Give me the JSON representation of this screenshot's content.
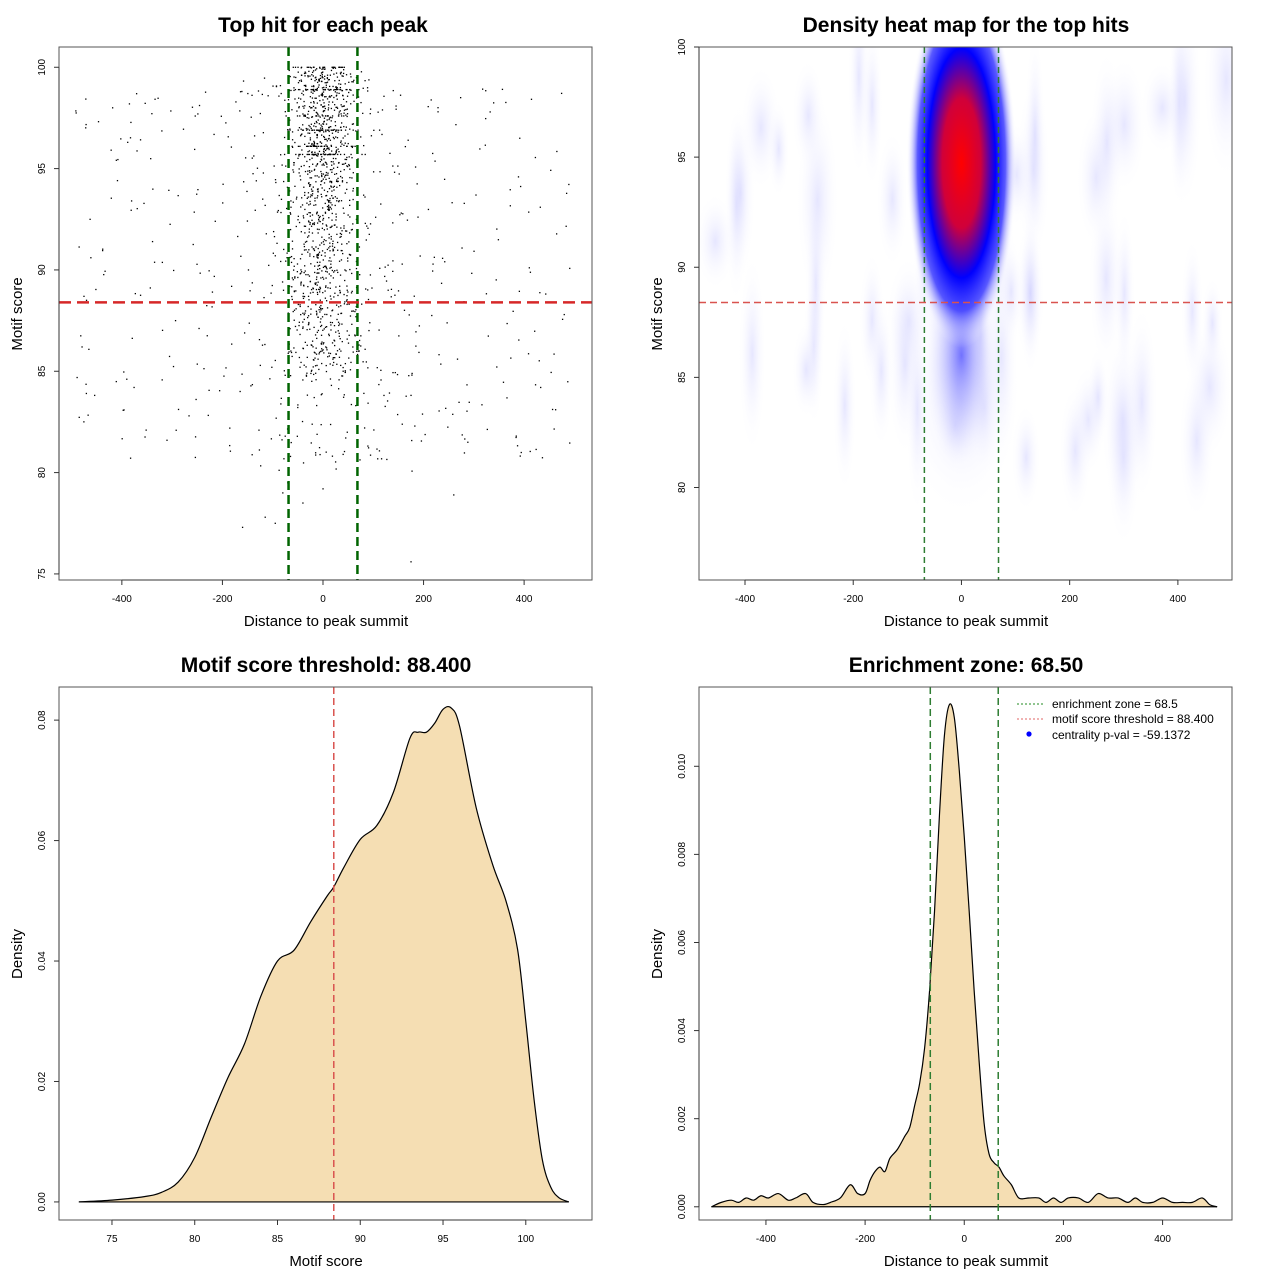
{
  "chart_data": [
    {
      "id": "scatter",
      "type": "scatter",
      "title": "Top hit for each peak",
      "xlabel": "Distance to peak summit",
      "ylabel": "Motif score",
      "xlim": [
        -525,
        535
      ],
      "ylim": [
        74.7,
        101
      ],
      "xticks": [
        -400,
        -200,
        0,
        200,
        400
      ],
      "yticks": [
        75,
        80,
        85,
        90,
        95,
        100
      ],
      "reference_lines": {
        "enrichment_zone": [
          -68.5,
          68.5
        ],
        "score_threshold": 88.4
      },
      "colors": {
        "points": "#000000",
        "zone": "#006400",
        "threshold": "#d62728"
      },
      "description": "About 1700 points; dense column within ±68.5 around 0 for scores 84–100, sparse uniform background across ±500 for scores 80–99, with discrete score rows near 100, 98.9, 97.6, 96.9, 96.1"
    },
    {
      "id": "heatmap",
      "type": "heatmap",
      "title": "Density heat map for the top hits",
      "xlabel": "Distance to peak summit",
      "ylabel": "Motif score",
      "xlim": [
        -485,
        500
      ],
      "ylim": [
        75.8,
        100
      ],
      "xticks": [
        -400,
        -200,
        0,
        200,
        400
      ],
      "yticks": [
        80,
        85,
        90,
        95,
        100
      ],
      "reference_lines": {
        "enrichment_zone": [
          -68.5,
          68.5
        ],
        "score_threshold": 88.4
      },
      "hotspot": {
        "x": 0,
        "y": 94.5,
        "x_sd": 20,
        "y_sd": 5
      },
      "color_ramp": [
        "#ffffff",
        "#0000ff",
        "#ff0000"
      ]
    },
    {
      "id": "score-density",
      "type": "area",
      "title": "Motif score threshold: 88.400",
      "xlabel": "Motif score",
      "ylabel": "Density",
      "xlim": [
        71.8,
        104
      ],
      "ylim": [
        -0.003,
        0.0855
      ],
      "xticks": [
        75,
        80,
        85,
        90,
        95,
        100
      ],
      "ytick_labels": [
        "0.00",
        "0.02",
        "0.04",
        "0.06",
        "0.08"
      ],
      "yticks": [
        0,
        0.02,
        0.04,
        0.06,
        0.08
      ],
      "threshold": 88.4,
      "fill": "#f5deb3",
      "x": [
        73,
        75,
        77,
        78,
        79,
        80,
        81,
        82,
        83,
        84,
        85,
        86,
        87,
        88,
        88.4,
        89,
        90,
        91,
        92,
        93,
        93.5,
        94,
        94.5,
        95,
        95.5,
        96,
        97,
        98,
        98.8,
        99.5,
        100,
        100.5,
        101,
        101.5,
        102,
        102.6
      ],
      "y": [
        0.0,
        0.0003,
        0.0009,
        0.0016,
        0.0033,
        0.0074,
        0.0141,
        0.0206,
        0.0262,
        0.0342,
        0.04,
        0.0418,
        0.0465,
        0.0508,
        0.0523,
        0.0555,
        0.0602,
        0.0625,
        0.068,
        0.077,
        0.078,
        0.078,
        0.0795,
        0.0818,
        0.082,
        0.079,
        0.0655,
        0.056,
        0.05,
        0.042,
        0.03,
        0.017,
        0.007,
        0.0025,
        0.0007,
        0.0
      ]
    },
    {
      "id": "distance-density",
      "type": "area",
      "title": "Enrichment zone: 68.50",
      "xlabel": "Distance to peak summit",
      "ylabel": "Density",
      "xlim": [
        -535,
        540
      ],
      "ylim": [
        -0.0003,
        0.0118
      ],
      "xticks": [
        -400,
        -200,
        0,
        200,
        400
      ],
      "ytick_labels": [
        "0.000",
        "0.002",
        "0.004",
        "0.006",
        "0.008",
        "0.010"
      ],
      "yticks": [
        0,
        0.002,
        0.004,
        0.006,
        0.008,
        0.01
      ],
      "enrichment_zone": [
        -68.5,
        68.5
      ],
      "fill": "#f5deb3",
      "x": [
        -510,
        -490,
        -470,
        -455,
        -440,
        -425,
        -410,
        -395,
        -375,
        -355,
        -340,
        -320,
        -305,
        -285,
        -270,
        -250,
        -230,
        -215,
        -200,
        -190,
        -180,
        -170,
        -160,
        -150,
        -135,
        -120,
        -110,
        -100,
        -90,
        -80,
        -70,
        -60,
        -50,
        -40,
        -30,
        -20,
        -10,
        0,
        10,
        20,
        30,
        40,
        50,
        60,
        70,
        80,
        95,
        110,
        130,
        150,
        165,
        180,
        195,
        210,
        230,
        250,
        270,
        290,
        310,
        330,
        345,
        360,
        380,
        400,
        420,
        440,
        460,
        480,
        495,
        510
      ],
      "y": [
        0.0,
        0.0001,
        0.00015,
        0.0001,
        0.0002,
        0.00015,
        0.00025,
        0.0002,
        0.0003,
        0.00015,
        0.0002,
        0.0003,
        0.0001,
        5e-05,
        0.0001,
        0.0002,
        0.0005,
        0.0003,
        0.0003,
        0.0006,
        0.0008,
        0.0009,
        0.0008,
        0.0011,
        0.0013,
        0.0016,
        0.0018,
        0.0023,
        0.0028,
        0.0036,
        0.0049,
        0.0067,
        0.0089,
        0.0107,
        0.0114,
        0.0111,
        0.0099,
        0.0084,
        0.0067,
        0.0049,
        0.0033,
        0.0019,
        0.0012,
        0.001,
        0.0009,
        0.0007,
        0.0005,
        0.0002,
        0.0002,
        0.0002,
        0.0001,
        0.0002,
        0.0001,
        0.0002,
        0.0002,
        0.0001,
        0.0003,
        0.0002,
        0.0002,
        0.0001,
        0.0002,
        0.0001,
        0.0001,
        0.0002,
        0.0001,
        0.0001,
        0.0001,
        0.0002,
        5e-05,
        0.0
      ]
    }
  ],
  "legend": {
    "position": "top-right",
    "items": [
      {
        "label": "enrichment zone = 68.5",
        "color": "#228b22",
        "style": "dotted-line"
      },
      {
        "label": "motif score threshold = 88.400",
        "color": "#e06666",
        "style": "dotted-line"
      },
      {
        "label": "centrality p-val = -59.1372",
        "color": "#0000ff",
        "style": "point"
      }
    ]
  }
}
